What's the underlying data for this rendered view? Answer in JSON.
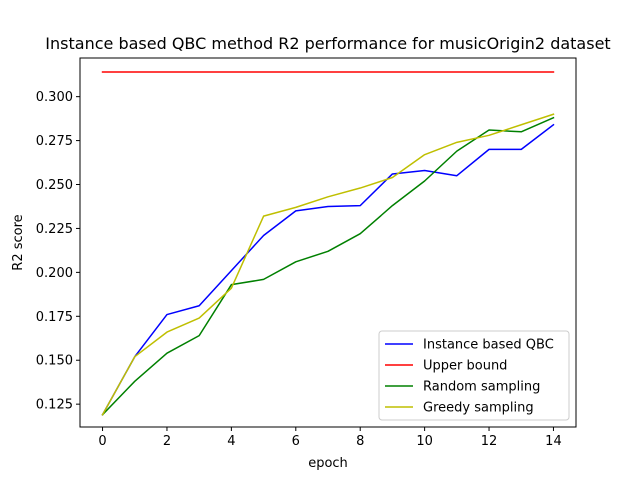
{
  "chart_data": {
    "type": "line",
    "title": "Instance based QBC method R2 performance for musicOrigin2 dataset",
    "xlabel": "epoch",
    "ylabel": "R2 score",
    "xlim": [
      -0.7,
      14.7
    ],
    "ylim": [
      0.112,
      0.322
    ],
    "xticks": [
      0,
      2,
      4,
      6,
      8,
      10,
      12,
      14
    ],
    "yticks": [
      0.125,
      0.15,
      0.175,
      0.2,
      0.225,
      0.25,
      0.275,
      0.3
    ],
    "ytick_labels": [
      "0.125",
      "0.150",
      "0.175",
      "0.200",
      "0.225",
      "0.250",
      "0.275",
      "0.300"
    ],
    "grid": false,
    "legend_position": "lower-right",
    "x": [
      0,
      1,
      2,
      3,
      4,
      5,
      6,
      7,
      8,
      9,
      10,
      11,
      12,
      13,
      14
    ],
    "series": [
      {
        "name": "Instance based QBC",
        "color": "#0000ff",
        "values": [
          0.119,
          0.152,
          0.176,
          0.181,
          0.201,
          0.221,
          0.235,
          0.2375,
          0.238,
          0.256,
          0.258,
          0.255,
          0.27,
          0.27,
          0.284
        ]
      },
      {
        "name": "Upper bound",
        "color": "#ff0000",
        "values": [
          0.314,
          0.314,
          0.314,
          0.314,
          0.314,
          0.314,
          0.314,
          0.314,
          0.314,
          0.314,
          0.314,
          0.314,
          0.314,
          0.314,
          0.314
        ]
      },
      {
        "name": "Random sampling",
        "color": "#008000",
        "values": [
          0.119,
          0.138,
          0.154,
          0.164,
          0.193,
          0.196,
          0.206,
          0.212,
          0.222,
          0.238,
          0.252,
          0.269,
          0.281,
          0.28,
          0.288
        ]
      },
      {
        "name": "Greedy sampling",
        "color": "#bfbf00",
        "values": [
          0.119,
          0.152,
          0.166,
          0.174,
          0.191,
          0.232,
          0.237,
          0.243,
          0.248,
          0.254,
          0.267,
          0.274,
          0.278,
          0.284,
          0.29
        ]
      }
    ]
  }
}
